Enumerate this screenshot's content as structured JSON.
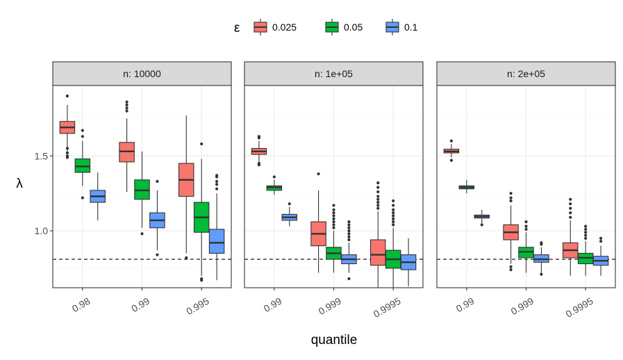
{
  "chart_data": {
    "type": "boxplot",
    "xlabel": "quantile",
    "ylabel": "λ",
    "ylim": [
      0.62,
      1.97
    ],
    "yticks": [
      "1.0",
      "1.5"
    ],
    "yticks_values": [
      1.0,
      1.5
    ],
    "reference_line": 0.81,
    "legend": {
      "title": "ε",
      "position": "top",
      "entries": [
        {
          "label": "0.025",
          "color": "#F8766D"
        },
        {
          "label": "0.05",
          "color": "#00BA38"
        },
        {
          "label": "0.1",
          "color": "#619CFF"
        }
      ]
    },
    "panels": [
      {
        "strip": "n: 10000",
        "categories": [
          "0.98",
          "0.99",
          "0.995"
        ],
        "groups": [
          [
            {
              "eps": "0.025",
              "whisker_low": 1.53,
              "q1": 1.65,
              "median": 1.69,
              "q3": 1.73,
              "whisker_high": 1.84,
              "outliers": [
                1.9,
                1.52,
                1.5,
                1.49,
                1.55
              ]
            },
            {
              "eps": "0.05",
              "whisker_low": 1.3,
              "q1": 1.39,
              "median": 1.43,
              "q3": 1.48,
              "whisker_high": 1.6,
              "outliers": [
                1.63,
                1.67,
                1.22
              ]
            },
            {
              "eps": "0.1",
              "whisker_low": 1.07,
              "q1": 1.19,
              "median": 1.23,
              "q3": 1.27,
              "whisker_high": 1.39,
              "outliers": []
            }
          ],
          [
            {
              "eps": "0.025",
              "whisker_low": 1.26,
              "q1": 1.46,
              "median": 1.53,
              "q3": 1.59,
              "whisker_high": 1.75,
              "outliers": [
                1.8,
                1.82,
                1.84,
                1.86
              ]
            },
            {
              "eps": "0.05",
              "whisker_low": 1.02,
              "q1": 1.21,
              "median": 1.27,
              "q3": 1.34,
              "whisker_high": 1.53,
              "outliers": [
                0.98
              ]
            },
            {
              "eps": "0.1",
              "whisker_low": 0.87,
              "q1": 1.02,
              "median": 1.07,
              "q3": 1.12,
              "whisker_high": 1.27,
              "outliers": [
                0.84,
                1.33
              ]
            }
          ],
          [
            {
              "eps": "0.025",
              "whisker_low": 0.85,
              "q1": 1.23,
              "median": 1.34,
              "q3": 1.45,
              "whisker_high": 1.77,
              "outliers": [
                0.82
              ]
            },
            {
              "eps": "0.05",
              "whisker_low": 0.7,
              "q1": 0.99,
              "median": 1.09,
              "q3": 1.19,
              "whisker_high": 1.48,
              "outliers": [
                1.58,
                0.68,
                0.67
              ]
            },
            {
              "eps": "0.1",
              "whisker_low": 0.67,
              "q1": 0.85,
              "median": 0.92,
              "q3": 1.01,
              "whisker_high": 1.25,
              "outliers": [
                1.28,
                1.31,
                1.33,
                1.36,
                1.37
              ]
            }
          ]
        ]
      },
      {
        "strip": "n: 1e+05",
        "categories": [
          "0.99",
          "0.999",
          "0.9995"
        ],
        "groups": [
          [
            {
              "eps": "0.025",
              "whisker_low": 1.46,
              "q1": 1.51,
              "median": 1.53,
              "q3": 1.55,
              "whisker_high": 1.6,
              "outliers": [
                1.62,
                1.63,
                1.45,
                1.44
              ]
            },
            {
              "eps": "0.05",
              "whisker_low": 1.24,
              "q1": 1.27,
              "median": 1.29,
              "q3": 1.3,
              "whisker_high": 1.34,
              "outliers": [
                1.36
              ]
            },
            {
              "eps": "0.1",
              "whisker_low": 1.03,
              "q1": 1.07,
              "median": 1.09,
              "q3": 1.11,
              "whisker_high": 1.16,
              "outliers": [
                1.18
              ]
            }
          ],
          [
            {
              "eps": "0.025",
              "whisker_low": 0.72,
              "q1": 0.9,
              "median": 0.98,
              "q3": 1.06,
              "whisker_high": 1.27,
              "outliers": [
                1.38
              ]
            },
            {
              "eps": "0.05",
              "whisker_low": 0.72,
              "q1": 0.81,
              "median": 0.85,
              "q3": 0.89,
              "whisker_high": 1.0,
              "outliers": [
                1.02,
                1.04,
                1.06,
                1.08,
                1.1,
                1.12,
                1.14,
                1.17
              ]
            },
            {
              "eps": "0.1",
              "whisker_low": 0.72,
              "q1": 0.78,
              "median": 0.81,
              "q3": 0.84,
              "whisker_high": 0.92,
              "outliers": [
                0.68,
                0.94,
                0.96,
                0.98,
                1.0,
                1.02,
                1.04,
                1.06
              ]
            }
          ],
          [
            {
              "eps": "0.025",
              "whisker_low": 0.62,
              "q1": 0.77,
              "median": 0.84,
              "q3": 0.94,
              "whisker_high": 1.13,
              "outliers": [
                1.15,
                1.17,
                1.19,
                1.21,
                1.23,
                1.26,
                1.29,
                1.32
              ]
            },
            {
              "eps": "0.05",
              "whisker_low": 0.62,
              "q1": 0.75,
              "median": 0.81,
              "q3": 0.87,
              "whisker_high": 1.02,
              "outliers": [
                1.04,
                1.06,
                1.08,
                1.1,
                1.12,
                1.14,
                1.17,
                1.2
              ]
            },
            {
              "eps": "0.1",
              "whisker_low": 0.63,
              "q1": 0.74,
              "median": 0.79,
              "q3": 0.84,
              "whisker_high": 0.95,
              "outliers": []
            }
          ]
        ]
      },
      {
        "strip": "n: 2e+05",
        "categories": [
          "0.99",
          "0.999",
          "0.9995"
        ],
        "groups": [
          [
            {
              "eps": "0.025",
              "whisker_low": 1.49,
              "q1": 1.52,
              "median": 1.53,
              "q3": 1.545,
              "whisker_high": 1.58,
              "outliers": [
                1.6,
                1.47
              ]
            },
            {
              "eps": "0.05",
              "whisker_low": 1.25,
              "q1": 1.28,
              "median": 1.29,
              "q3": 1.3,
              "whisker_high": 1.34,
              "outliers": []
            },
            {
              "eps": "0.1",
              "whisker_low": 1.05,
              "q1": 1.085,
              "median": 1.095,
              "q3": 1.105,
              "whisker_high": 1.14,
              "outliers": [
                1.04
              ]
            }
          ],
          [
            {
              "eps": "0.025",
              "whisker_low": 0.78,
              "q1": 0.94,
              "median": 0.99,
              "q3": 1.04,
              "whisker_high": 1.17,
              "outliers": [
                1.2,
                1.22,
                1.25,
                0.76,
                0.74
              ]
            },
            {
              "eps": "0.05",
              "whisker_low": 0.72,
              "q1": 0.82,
              "median": 0.86,
              "q3": 0.89,
              "whisker_high": 0.99,
              "outliers": [
                1.01,
                1.03,
                1.06
              ]
            },
            {
              "eps": "0.1",
              "whisker_low": 0.72,
              "q1": 0.79,
              "median": 0.81,
              "q3": 0.84,
              "whisker_high": 0.89,
              "outliers": [
                0.71,
                0.91,
                0.92
              ]
            }
          ],
          [
            {
              "eps": "0.025",
              "whisker_low": 0.7,
              "q1": 0.82,
              "median": 0.87,
              "q3": 0.92,
              "whisker_high": 1.07,
              "outliers": [
                1.09,
                1.12,
                1.15,
                1.18,
                1.21
              ]
            },
            {
              "eps": "0.05",
              "whisker_low": 0.7,
              "q1": 0.78,
              "median": 0.82,
              "q3": 0.85,
              "whisker_high": 0.93,
              "outliers": [
                0.95,
                0.97,
                0.99,
                1.01,
                1.03
              ]
            },
            {
              "eps": "0.1",
              "whisker_low": 0.7,
              "q1": 0.77,
              "median": 0.8,
              "q3": 0.83,
              "whisker_high": 0.9,
              "outliers": [
                0.93,
                0.95
              ]
            }
          ]
        ]
      }
    ]
  }
}
